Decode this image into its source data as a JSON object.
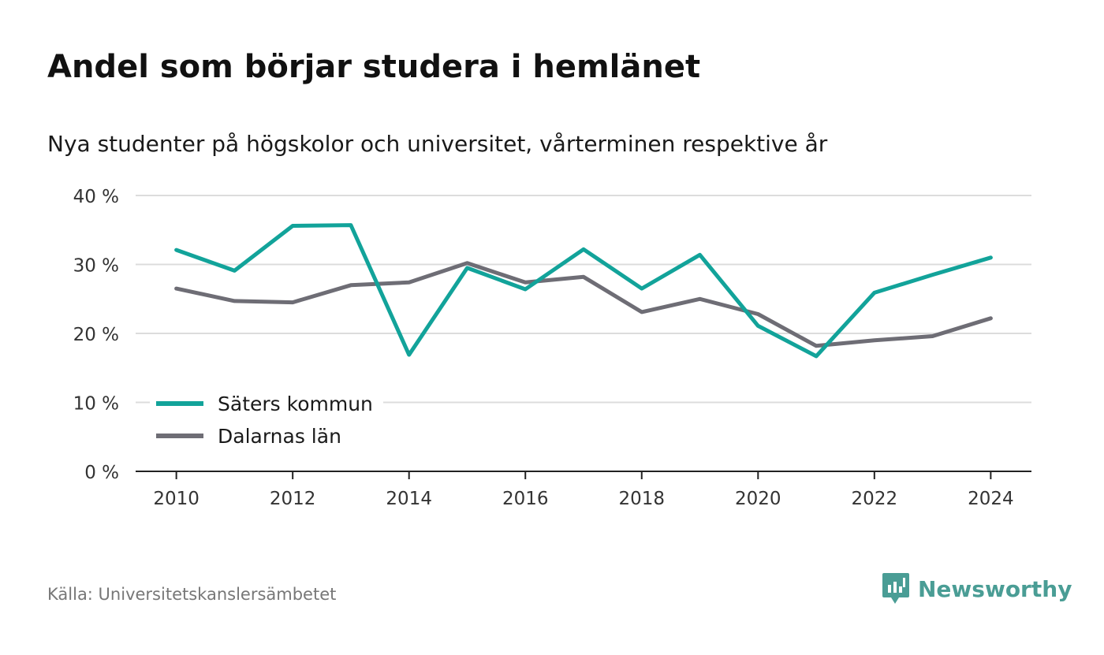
{
  "title": "Andel som börjar studera i hemlänet",
  "subtitle": "Nya studenter på högskolor och universitet, vårterminen respektive år",
  "source": "Källa: Universitetskanslersämbetet",
  "brand": {
    "name": "Newsworthy",
    "icon": "newsworthy-logo-icon",
    "color": "#4a9d95"
  },
  "chart_data": {
    "type": "line",
    "x": [
      2010,
      2011,
      2012,
      2013,
      2014,
      2015,
      2016,
      2017,
      2018,
      2019,
      2020,
      2021,
      2022,
      2023,
      2024
    ],
    "x_ticks": [
      2010,
      2012,
      2014,
      2016,
      2018,
      2020,
      2022,
      2024
    ],
    "x_tick_labels": [
      "2010",
      "2012",
      "2014",
      "2016",
      "2018",
      "2020",
      "2022",
      "2024"
    ],
    "y_ticks": [
      0,
      10,
      20,
      30,
      40
    ],
    "y_tick_labels": [
      "0 %",
      "10 %",
      "20 %",
      "30 %",
      "40 %"
    ],
    "xlim": [
      2009.3,
      2024.7
    ],
    "ylim": [
      0,
      40
    ],
    "grid": true,
    "legend_position": "bottom-left",
    "series": [
      {
        "name": "Säters kommun",
        "color": "#12a39a",
        "values": [
          32.1,
          29.1,
          35.6,
          35.7,
          16.9,
          29.5,
          26.4,
          32.2,
          26.5,
          31.4,
          21.1,
          16.7,
          25.9,
          28.5,
          31.0
        ]
      },
      {
        "name": "Dalarnas län",
        "color": "#6e6d75",
        "values": [
          26.5,
          24.7,
          24.5,
          27.0,
          27.4,
          30.2,
          27.4,
          28.2,
          23.1,
          25.0,
          22.8,
          18.2,
          19.0,
          19.6,
          22.2
        ]
      }
    ]
  }
}
